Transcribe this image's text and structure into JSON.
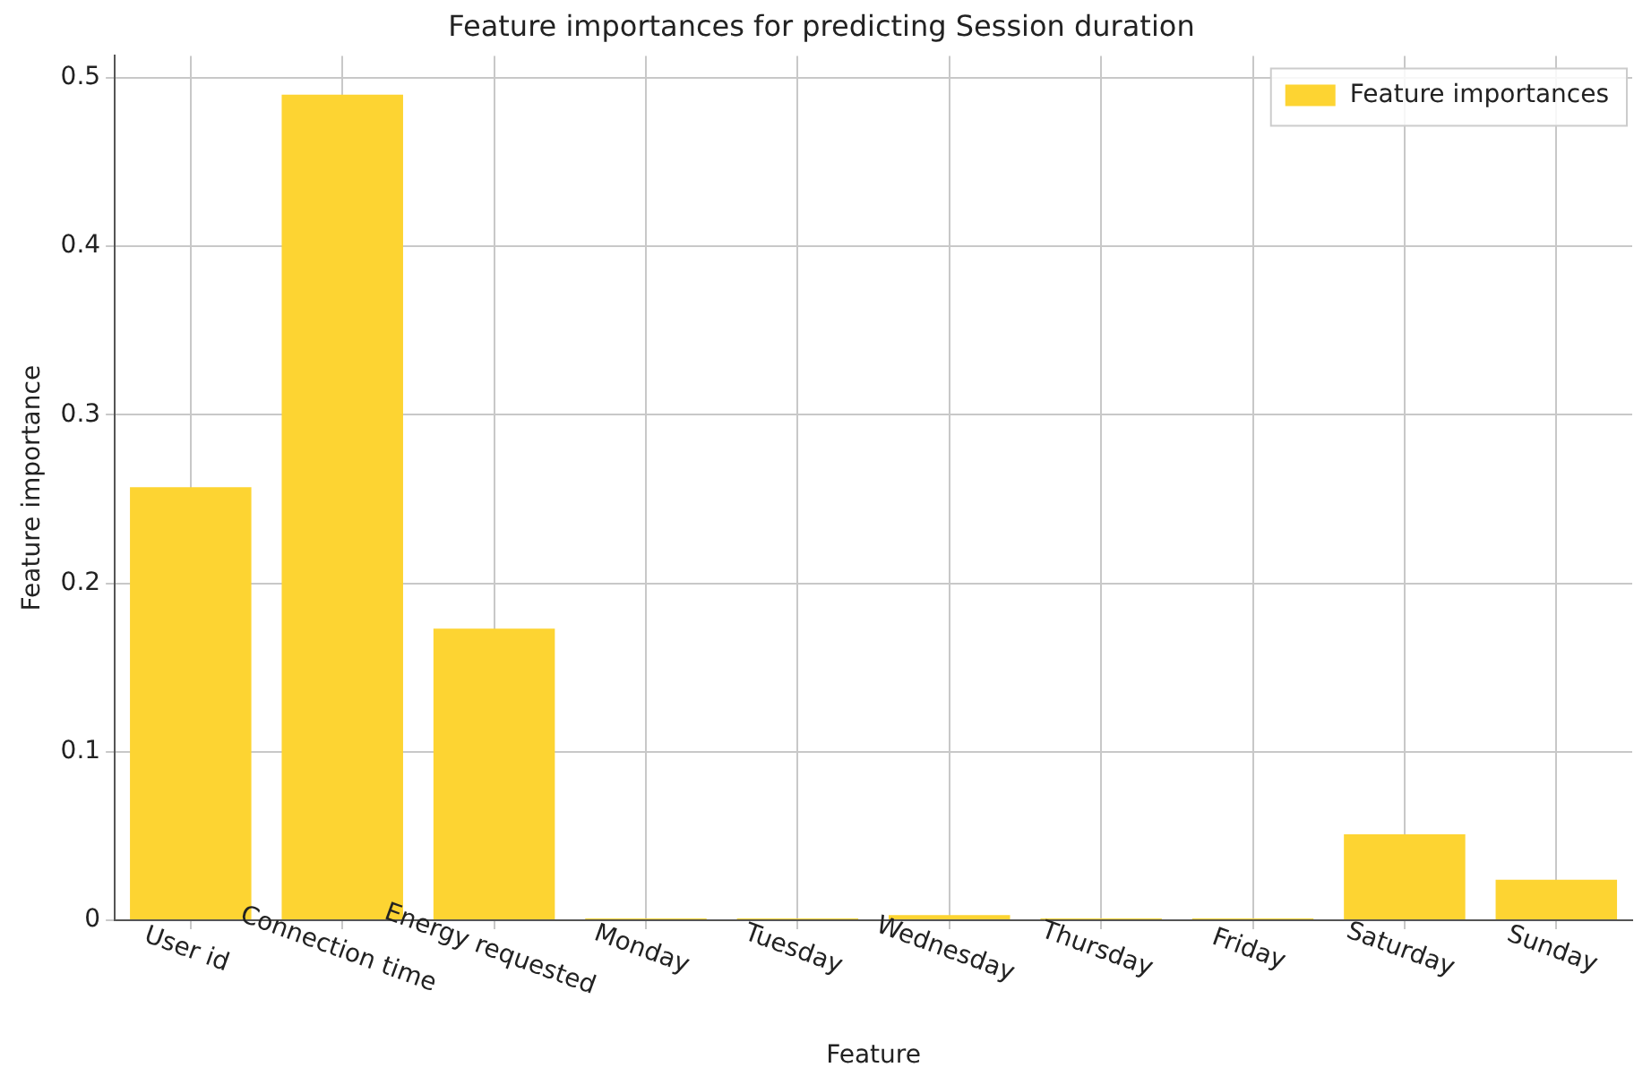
{
  "chart_data": {
    "type": "bar",
    "title": "Feature importances for predicting Session duration",
    "xlabel": "Feature",
    "ylabel": "Feature importance",
    "categories": [
      "User id",
      "Connection time",
      "Energy requested",
      "Monday",
      "Tuesday",
      "Wednesday",
      "Thursday",
      "Friday",
      "Saturday",
      "Sunday"
    ],
    "series": [
      {
        "name": "Feature importances",
        "color": "#fdd432",
        "values": [
          0.257,
          0.49,
          0.173,
          0.001,
          0.001,
          0.003,
          0.001,
          0.001,
          0.051,
          0.024
        ]
      }
    ],
    "ylim": [
      0,
      0.513
    ],
    "yticks": [
      0,
      0.1,
      0.2,
      0.3,
      0.4,
      0.5
    ],
    "grid": true,
    "legend": "top right"
  }
}
